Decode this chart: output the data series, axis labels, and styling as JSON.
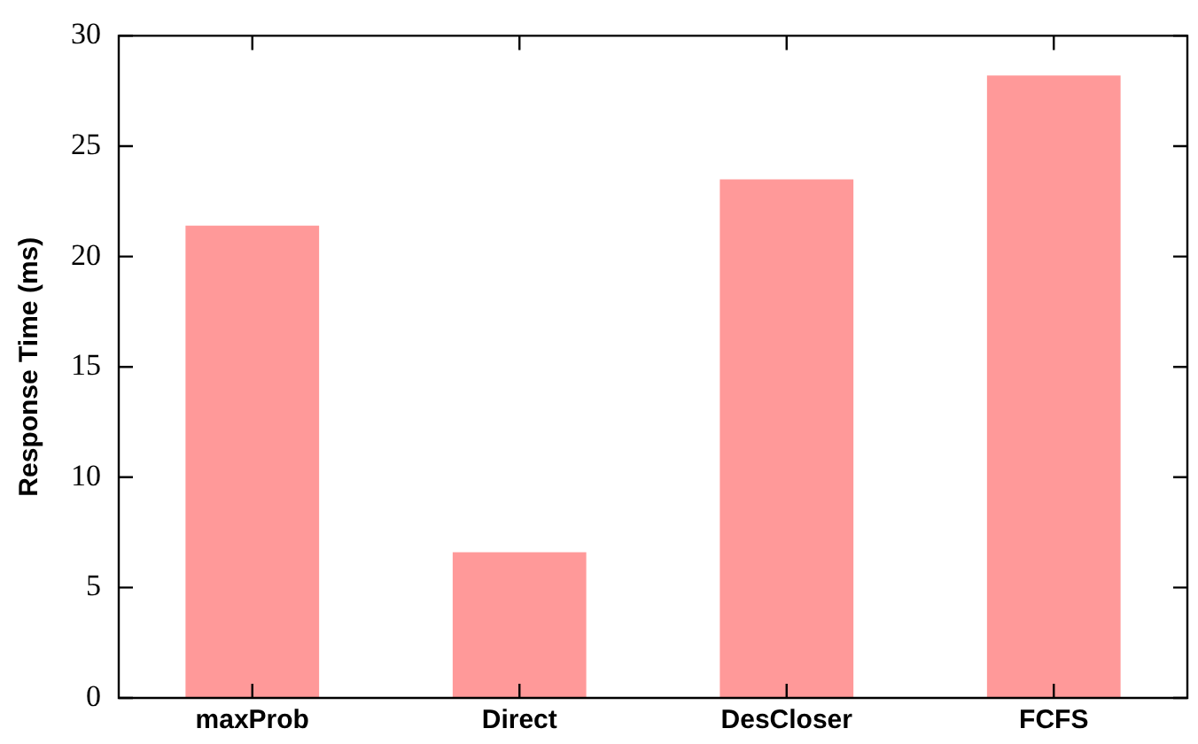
{
  "chart_data": {
    "type": "bar",
    "ylabel": "Response Time (ms)",
    "categories": [
      "maxProb",
      "Direct",
      "DesCloser",
      "FCFS"
    ],
    "values": [
      21.4,
      6.6,
      23.5,
      28.2
    ],
    "color": "#ff9999",
    "ylim": [
      0,
      30
    ],
    "yticks": [
      0,
      5,
      10,
      15,
      20,
      25,
      30
    ],
    "grid": false,
    "legend": false
  }
}
